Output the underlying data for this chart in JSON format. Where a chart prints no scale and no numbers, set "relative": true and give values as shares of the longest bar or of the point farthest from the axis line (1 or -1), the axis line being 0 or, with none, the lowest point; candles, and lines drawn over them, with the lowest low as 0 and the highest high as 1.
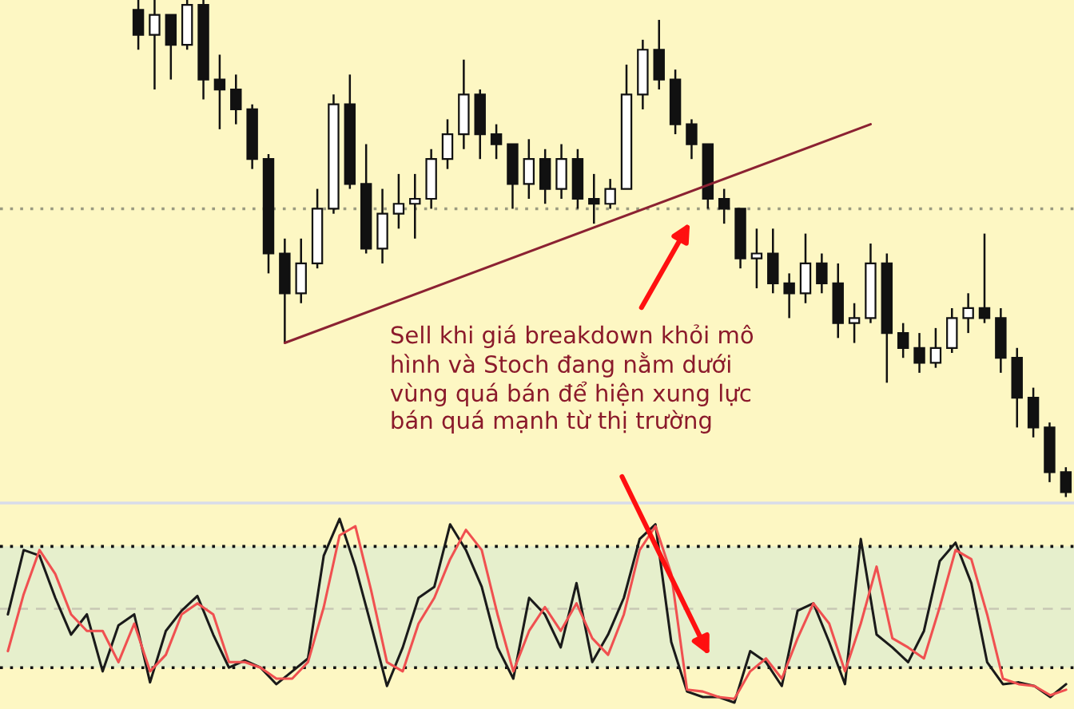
{
  "chart_data": [
    {
      "type": "candlestick",
      "relative": true,
      "grid": false,
      "legend": false,
      "categories": [
        null,
        null,
        null,
        null,
        null,
        null,
        null,
        null,
        null,
        null,
        null,
        null,
        null,
        null,
        null,
        null,
        null,
        null,
        null,
        null,
        null,
        null,
        null,
        null,
        null,
        null,
        null,
        null,
        null,
        null,
        null,
        null,
        null,
        null,
        null,
        null,
        null,
        null,
        null,
        null,
        null,
        null,
        null,
        null,
        null,
        null,
        null,
        null,
        null,
        null,
        null,
        null,
        null,
        null,
        null,
        null,
        null,
        null,
        null,
        null,
        null,
        null,
        null,
        null,
        null,
        null
      ],
      "ohlc": [
        null,
        null,
        null,
        null,
        null,
        null,
        null,
        null,
        [
          0.98,
          1.0,
          0.9,
          0.93
        ],
        [
          0.93,
          1.0,
          0.82,
          0.97
        ],
        [
          0.97,
          0.97,
          0.84,
          0.91
        ],
        [
          0.91,
          1.0,
          0.9,
          0.99
        ],
        [
          0.99,
          1.0,
          0.8,
          0.84
        ],
        [
          0.84,
          0.89,
          0.74,
          0.82
        ],
        [
          0.82,
          0.85,
          0.75,
          0.78
        ],
        [
          0.78,
          0.79,
          0.66,
          0.68
        ],
        [
          0.68,
          0.69,
          0.45,
          0.49
        ],
        [
          0.49,
          0.52,
          0.31,
          0.41
        ],
        [
          0.41,
          0.52,
          0.39,
          0.47
        ],
        [
          0.47,
          0.62,
          0.46,
          0.58
        ],
        [
          0.58,
          0.81,
          0.57,
          0.79
        ],
        [
          0.79,
          0.85,
          0.62,
          0.63
        ],
        [
          0.63,
          0.71,
          0.49,
          0.5
        ],
        [
          0.5,
          0.62,
          0.47,
          0.57
        ],
        [
          0.57,
          0.65,
          0.54,
          0.59
        ],
        [
          0.59,
          0.65,
          0.52,
          0.6
        ],
        [
          0.6,
          0.7,
          0.58,
          0.68
        ],
        [
          0.68,
          0.76,
          0.66,
          0.73
        ],
        [
          0.73,
          0.88,
          0.7,
          0.81
        ],
        [
          0.81,
          0.82,
          0.68,
          0.73
        ],
        [
          0.73,
          0.75,
          0.68,
          0.71
        ],
        [
          0.71,
          0.71,
          0.58,
          0.63
        ],
        [
          0.63,
          0.72,
          0.6,
          0.68
        ],
        [
          0.68,
          0.7,
          0.59,
          0.62
        ],
        [
          0.62,
          0.71,
          0.6,
          0.68
        ],
        [
          0.68,
          0.7,
          0.58,
          0.6
        ],
        [
          0.6,
          0.65,
          0.55,
          0.59
        ],
        [
          0.59,
          0.64,
          0.58,
          0.62
        ],
        [
          0.62,
          0.87,
          0.62,
          0.81
        ],
        [
          0.81,
          0.92,
          0.78,
          0.9
        ],
        [
          0.9,
          0.96,
          0.82,
          0.84
        ],
        [
          0.84,
          0.86,
          0.73,
          0.75
        ],
        [
          0.75,
          0.76,
          0.68,
          0.71
        ],
        [
          0.71,
          0.71,
          0.58,
          0.6
        ],
        [
          0.6,
          0.62,
          0.55,
          0.58
        ],
        [
          0.58,
          0.58,
          0.46,
          0.48
        ],
        [
          0.48,
          0.54,
          0.42,
          0.49
        ],
        [
          0.49,
          0.54,
          0.41,
          0.43
        ],
        [
          0.43,
          0.45,
          0.36,
          0.41
        ],
        [
          0.41,
          0.53,
          0.39,
          0.47
        ],
        [
          0.47,
          0.49,
          0.41,
          0.43
        ],
        [
          0.43,
          0.47,
          0.32,
          0.35
        ],
        [
          0.35,
          0.39,
          0.31,
          0.36
        ],
        [
          0.36,
          0.51,
          0.35,
          0.47
        ],
        [
          0.47,
          0.49,
          0.23,
          0.33
        ],
        [
          0.33,
          0.35,
          0.28,
          0.3
        ],
        [
          0.3,
          0.33,
          0.25,
          0.27
        ],
        [
          0.27,
          0.34,
          0.26,
          0.3
        ],
        [
          0.3,
          0.38,
          0.29,
          0.36
        ],
        [
          0.36,
          0.41,
          0.33,
          0.38
        ],
        [
          0.38,
          0.53,
          0.35,
          0.36
        ],
        [
          0.36,
          0.38,
          0.25,
          0.28
        ],
        [
          0.28,
          0.3,
          0.14,
          0.2
        ],
        [
          0.2,
          0.22,
          0.12,
          0.14
        ],
        [
          0.14,
          0.15,
          0.03,
          0.05
        ],
        [
          0.05,
          0.06,
          0.0,
          0.01
        ]
      ],
      "series": [
        {
          "type": "line",
          "color": "#8b2232",
          "values": [
            null,
            null,
            null,
            null,
            null,
            null,
            null,
            null,
            null,
            null,
            null,
            null,
            null,
            null,
            null,
            null,
            null,
            0.31,
            null,
            null,
            null,
            null,
            null,
            null,
            null,
            null,
            null,
            null,
            null,
            null,
            null,
            null,
            null,
            null,
            null,
            null,
            null,
            null,
            null,
            null,
            null,
            null,
            null,
            null,
            null,
            null,
            null,
            null,
            null,
            null,
            null,
            null,
            null,
            0.75,
            null,
            null,
            null,
            null,
            null,
            null,
            null,
            null,
            null,
            null,
            null,
            null
          ]
        }
      ],
      "ref_lines": [
        {
          "axis": "y",
          "value": 0.58,
          "color": "#9a9a80",
          "line_style": "dotted"
        }
      ],
      "annotations": [
        "Sell khi giá breakdown khỏi mô\nhình và Stoch đang nằm dưới\nvùng quá bán để hiện xung lực\nbán quá mạnh từ thị trường"
      ]
    },
    {
      "type": "line",
      "relative": true,
      "grid": false,
      "legend": false,
      "marker": "none",
      "categories": [
        null,
        null,
        null,
        null,
        null,
        null,
        null,
        null,
        null,
        null,
        null,
        null,
        null,
        null,
        null,
        null,
        null,
        null,
        null,
        null,
        null,
        null,
        null,
        null,
        null,
        null,
        null,
        null,
        null,
        null,
        null,
        null,
        null,
        null,
        null,
        null,
        null,
        null,
        null,
        null,
        null,
        null,
        null,
        null,
        null,
        null,
        null,
        null,
        null,
        null,
        null,
        null,
        null,
        null,
        null,
        null,
        null,
        null,
        null,
        null,
        null,
        null,
        null,
        null,
        null,
        null,
        null,
        null
      ],
      "series": [
        {
          "color": "#1a1a1a",
          "values": [
            0.48,
            0.83,
            0.8,
            0.57,
            0.37,
            0.48,
            0.17,
            0.42,
            0.48,
            0.11,
            0.39,
            0.5,
            0.58,
            0.37,
            0.19,
            0.23,
            0.19,
            0.1,
            0.17,
            0.24,
            0.8,
            1.0,
            0.74,
            0.42,
            0.09,
            0.3,
            0.57,
            0.63,
            0.97,
            0.83,
            0.63,
            0.3,
            0.13,
            0.57,
            0.48,
            0.3,
            0.65,
            0.22,
            0.37,
            0.57,
            0.89,
            0.97,
            0.33,
            0.06,
            0.03,
            0.03,
            0.0,
            0.28,
            0.22,
            0.09,
            0.5,
            0.54,
            0.33,
            0.1,
            0.89,
            0.37,
            0.3,
            0.22,
            0.39,
            0.77,
            0.87,
            0.65,
            0.22,
            0.1,
            0.11,
            0.09,
            0.03,
            0.1
          ]
        },
        {
          "color": "#f05050",
          "values": [
            0.28,
            0.59,
            0.83,
            0.7,
            0.48,
            0.39,
            0.39,
            0.22,
            0.43,
            0.17,
            0.26,
            0.48,
            0.54,
            0.48,
            0.22,
            0.22,
            0.19,
            0.13,
            0.13,
            0.22,
            0.52,
            0.91,
            0.96,
            0.61,
            0.22,
            0.17,
            0.43,
            0.57,
            0.78,
            0.94,
            0.83,
            0.48,
            0.17,
            0.39,
            0.52,
            0.39,
            0.54,
            0.35,
            0.26,
            0.48,
            0.83,
            0.96,
            0.7,
            0.07,
            0.06,
            0.03,
            0.02,
            0.17,
            0.24,
            0.13,
            0.35,
            0.54,
            0.43,
            0.17,
            0.43,
            0.74,
            0.35,
            0.3,
            0.24,
            0.52,
            0.83,
            0.78,
            0.48,
            0.13,
            0.1,
            0.09,
            0.04,
            0.07
          ]
        }
      ],
      "bands": [
        {
          "axis": "y",
          "from": 0.19,
          "to": 0.85,
          "color": "#e6efcc"
        }
      ],
      "ref_lines": [
        {
          "axis": "y",
          "value": 0.85,
          "color": "#111111",
          "line_style": "dotted"
        },
        {
          "axis": "y",
          "value": 0.19,
          "color": "#111111",
          "line_style": "dotted"
        },
        {
          "axis": "y",
          "value": 0.51,
          "color": "#c8c8b4",
          "line_style": "dashed"
        }
      ]
    }
  ]
}
